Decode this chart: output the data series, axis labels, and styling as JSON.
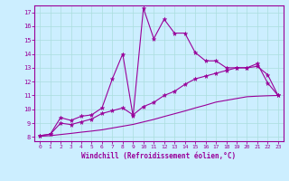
{
  "xlabel": "Windchill (Refroidissement éolien,°C)",
  "xlim": [
    -0.5,
    23.5
  ],
  "ylim": [
    7.7,
    17.5
  ],
  "yticks": [
    8,
    9,
    10,
    11,
    12,
    13,
    14,
    15,
    16,
    17
  ],
  "xticks": [
    0,
    1,
    2,
    3,
    4,
    5,
    6,
    7,
    8,
    9,
    10,
    11,
    12,
    13,
    14,
    15,
    16,
    17,
    18,
    19,
    20,
    21,
    22,
    23
  ],
  "bg_color": "#cceeff",
  "line_color": "#990099",
  "grid_color": "#aadddd",
  "line1_x": [
    0,
    1,
    2,
    3,
    4,
    5,
    6,
    7,
    8,
    9,
    10,
    11,
    12,
    13,
    14,
    15,
    16,
    17,
    18,
    19,
    20,
    21,
    22,
    23
  ],
  "line1_y": [
    8.1,
    8.2,
    9.4,
    9.2,
    9.5,
    9.6,
    10.1,
    12.2,
    14.0,
    9.5,
    17.3,
    15.1,
    16.5,
    15.5,
    15.5,
    14.1,
    13.5,
    13.5,
    13.0,
    13.0,
    13.0,
    13.3,
    11.9,
    11.0
  ],
  "line2_x": [
    0,
    1,
    2,
    3,
    4,
    5,
    6,
    7,
    8,
    9,
    10,
    11,
    12,
    13,
    14,
    15,
    16,
    17,
    18,
    19,
    20,
    21,
    22,
    23
  ],
  "line2_y": [
    8.1,
    8.2,
    9.0,
    8.9,
    9.1,
    9.3,
    9.7,
    9.9,
    10.1,
    9.6,
    10.2,
    10.5,
    11.0,
    11.3,
    11.8,
    12.2,
    12.4,
    12.6,
    12.8,
    13.0,
    13.0,
    13.1,
    12.5,
    11.0
  ],
  "line3_x": [
    0,
    1,
    2,
    3,
    4,
    5,
    6,
    7,
    8,
    9,
    10,
    11,
    12,
    13,
    14,
    15,
    16,
    17,
    18,
    19,
    20,
    21,
    22,
    23
  ],
  "line3_y": [
    8.05,
    8.1,
    8.18,
    8.26,
    8.35,
    8.43,
    8.52,
    8.65,
    8.78,
    8.91,
    9.09,
    9.27,
    9.48,
    9.68,
    9.88,
    10.1,
    10.3,
    10.52,
    10.65,
    10.78,
    10.91,
    10.95,
    10.98,
    11.0
  ]
}
